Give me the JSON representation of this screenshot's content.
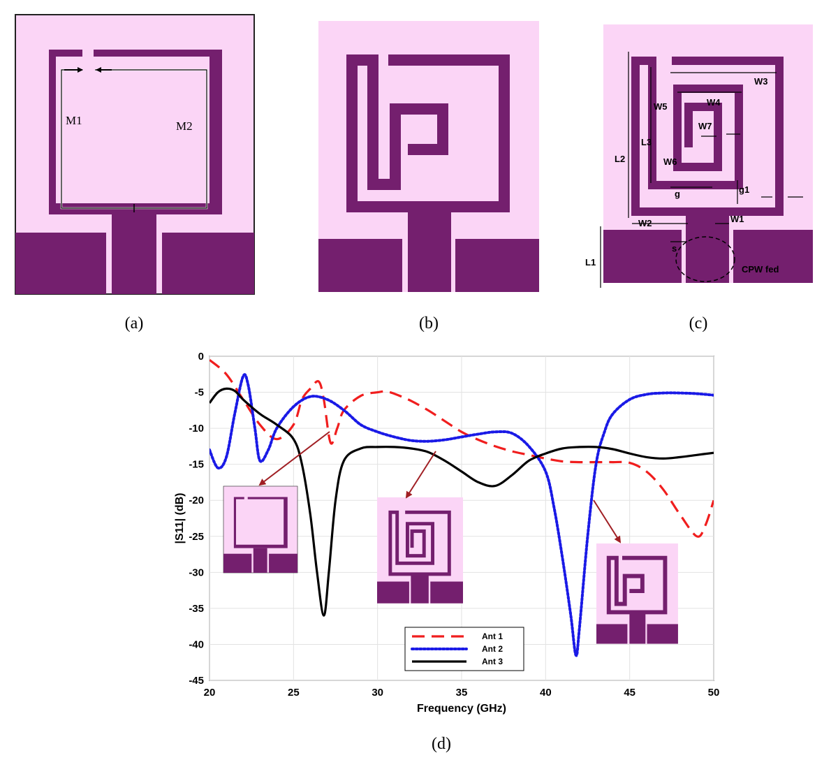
{
  "captions": {
    "a": "(a)",
    "b": "(b)",
    "c": "(c)",
    "d": "(d)"
  },
  "panel_a": {
    "labels": [
      "M1",
      "M2"
    ]
  },
  "panel_c": {
    "labels": [
      "W3",
      "W4",
      "W5",
      "W7",
      "L3",
      "L2",
      "W6",
      "g",
      "g1",
      "W2",
      "W1",
      "s",
      "L1",
      "CPW fed"
    ]
  },
  "colors": {
    "substrate": "#fbd5f6",
    "metal": "#741f6e",
    "ant1": "#f01e1e",
    "ant2": "#1a1ae6",
    "ant3": "#000000",
    "arrow": "#a01f24",
    "grid": "#e2e2e2"
  },
  "chart_data": {
    "type": "line",
    "title": "",
    "xlabel": "Frequency (GHz)",
    "ylabel": "|S11| (dB)",
    "xlim": [
      20,
      50
    ],
    "ylim": [
      -45,
      0
    ],
    "xticks": [
      20,
      25,
      30,
      35,
      40,
      45,
      50
    ],
    "yticks": [
      0,
      -5,
      -10,
      -15,
      -20,
      -25,
      -30,
      -35,
      -40,
      -45
    ],
    "grid": true,
    "legend_position": "bottom-center",
    "series": [
      {
        "name": "Ant 1",
        "style": "dashed",
        "color": "#f01e1e",
        "x": [
          20,
          21,
          22,
          23,
          24,
          25,
          25.5,
          26,
          26.5,
          26.8,
          27.2,
          27.6,
          28,
          29,
          30,
          30.5,
          31,
          32,
          33,
          34,
          35,
          36,
          37,
          38,
          39,
          40,
          41,
          42,
          43,
          44,
          45,
          46,
          47,
          48,
          49,
          49.5,
          50
        ],
        "y": [
          -0.5,
          -2.5,
          -6,
          -9.5,
          -11.5,
          -9.5,
          -6,
          -4.5,
          -3.5,
          -6,
          -12,
          -10,
          -7.5,
          -5.5,
          -5,
          -4.9,
          -5.2,
          -6.2,
          -7.5,
          -9,
          -10.5,
          -11.6,
          -12.5,
          -13.2,
          -13.7,
          -14.2,
          -14.6,
          -14.7,
          -14.7,
          -14.7,
          -14.8,
          -16,
          -18.5,
          -22,
          -25,
          -23.5,
          -20
        ]
      },
      {
        "name": "Ant 2",
        "style": "dotted",
        "color": "#1a1ae6",
        "x": [
          20,
          20.5,
          21,
          21.5,
          22,
          22.3,
          22.7,
          23,
          23.5,
          24,
          25,
          26,
          27,
          28,
          29,
          30,
          31,
          32,
          33,
          34,
          35,
          36,
          37,
          38,
          39,
          40,
          40.5,
          41,
          41.5,
          41.8,
          42,
          42.5,
          43,
          43.5,
          44,
          45,
          46,
          47,
          48,
          49,
          50
        ],
        "y": [
          -13,
          -15.5,
          -14,
          -8,
          -2.8,
          -4,
          -10,
          -14.5,
          -13,
          -10,
          -7,
          -5.6,
          -6,
          -7.5,
          -9.5,
          -10.5,
          -11.2,
          -11.7,
          -11.8,
          -11.6,
          -11.2,
          -10.8,
          -10.5,
          -10.7,
          -12.5,
          -16,
          -21,
          -28,
          -36,
          -41.5,
          -38,
          -25,
          -15,
          -10.5,
          -8,
          -6,
          -5.3,
          -5.1,
          -5.1,
          -5.2,
          -5.4
        ]
      },
      {
        "name": "Ant 3",
        "style": "solid",
        "color": "#000000",
        "x": [
          20,
          20.5,
          21,
          21.5,
          22,
          23,
          24,
          25,
          25.5,
          26,
          26.4,
          26.8,
          27.1,
          27.5,
          28,
          29,
          30,
          31,
          32,
          33,
          34,
          35,
          36,
          37,
          38,
          39,
          40,
          41,
          42,
          43,
          44,
          45,
          46,
          47,
          48,
          49,
          50
        ],
        "y": [
          -6.5,
          -5,
          -4.5,
          -4.8,
          -6,
          -8,
          -9.5,
          -11.5,
          -15,
          -22,
          -30,
          -36,
          -30,
          -20,
          -14.5,
          -12.8,
          -12.6,
          -12.6,
          -12.8,
          -13.3,
          -14.5,
          -16,
          -17.5,
          -18,
          -16.5,
          -14.5,
          -13.5,
          -12.8,
          -12.6,
          -12.6,
          -12.9,
          -13.5,
          -14,
          -14.2,
          -14,
          -13.7,
          -13.4
        ]
      }
    ]
  }
}
